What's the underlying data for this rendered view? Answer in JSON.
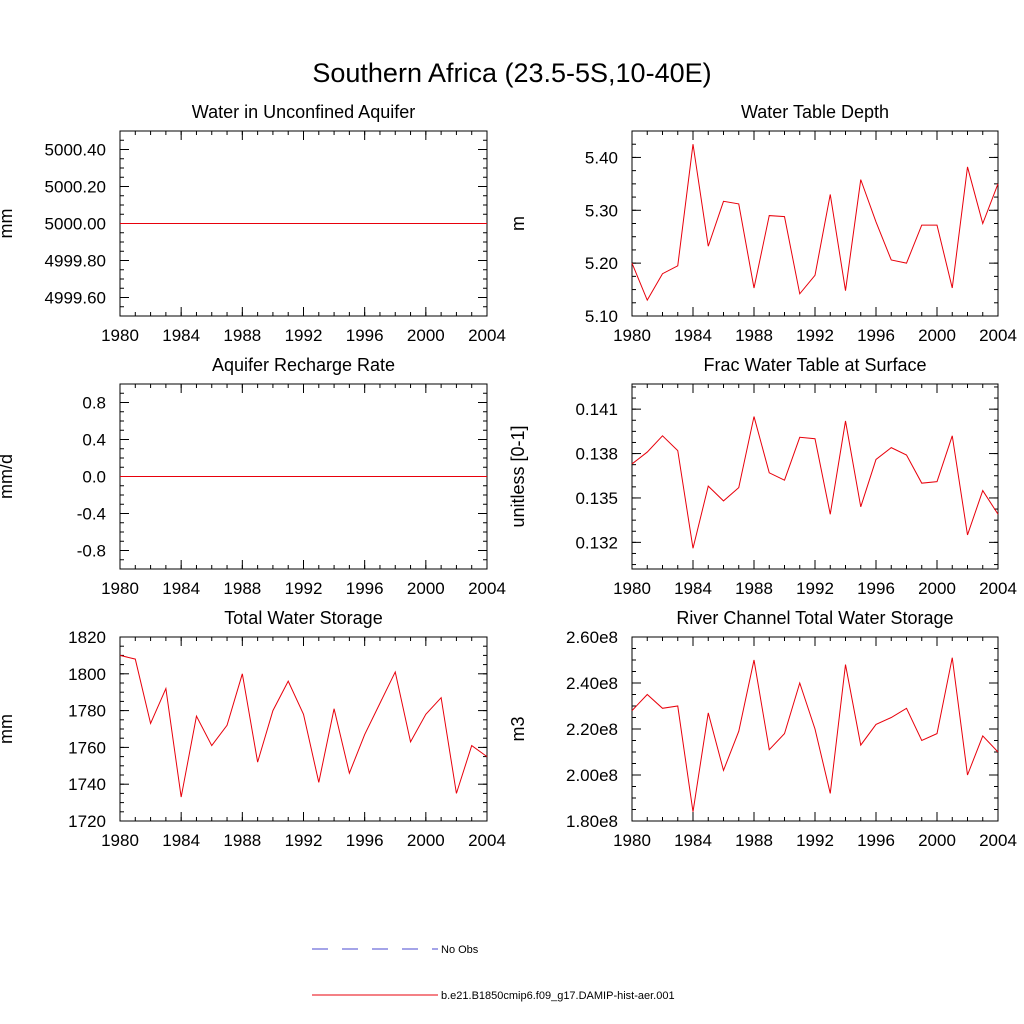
{
  "figure": {
    "title": "Southern Africa (23.5-5S,10-40E)"
  },
  "legend": [
    {
      "label": "No Obs",
      "color": "#4a4ad0",
      "dash": true
    },
    {
      "label": "b.e21.B1850cmip6.f09_g17.DAMIP-hist-aer.001",
      "color": "#e8000b",
      "dash": false
    }
  ],
  "chart_data": [
    {
      "type": "line",
      "title": "Water in Unconfined Aquifer",
      "ylabel": "mm",
      "xlabel": "",
      "xlim": [
        1980,
        2004
      ],
      "ylim": [
        4999.5,
        5000.5
      ],
      "xticks": [
        1980,
        1984,
        1988,
        1992,
        1996,
        2000,
        2004
      ],
      "yticks": [
        4999.6,
        4999.8,
        5000.0,
        5000.2,
        5000.4
      ],
      "ytick_labels": [
        "4999.60",
        "4999.80",
        "5000.00",
        "5000.20",
        "5000.40"
      ],
      "grid": false,
      "series": [
        {
          "color": "#e8000b",
          "x": [
            1980,
            1981,
            1982,
            1983,
            1984,
            1985,
            1986,
            1987,
            1988,
            1989,
            1990,
            1991,
            1992,
            1993,
            1994,
            1995,
            1996,
            1997,
            1998,
            1999,
            2000,
            2001,
            2002,
            2003,
            2004
          ],
          "values": [
            5000,
            5000,
            5000,
            5000,
            5000,
            5000,
            5000,
            5000,
            5000,
            5000,
            5000,
            5000,
            5000,
            5000,
            5000,
            5000,
            5000,
            5000,
            5000,
            5000,
            5000,
            5000,
            5000,
            5000,
            5000
          ]
        }
      ]
    },
    {
      "type": "line",
      "title": "Water Table Depth",
      "ylabel": "m",
      "xlabel": "",
      "xlim": [
        1980,
        2004
      ],
      "ylim": [
        5.1,
        5.45
      ],
      "xticks": [
        1980,
        1984,
        1988,
        1992,
        1996,
        2000,
        2004
      ],
      "yticks": [
        5.1,
        5.2,
        5.3,
        5.4
      ],
      "ytick_labels": [
        "5.10",
        "5.20",
        "5.30",
        "5.40"
      ],
      "grid": false,
      "series": [
        {
          "color": "#e8000b",
          "x": [
            1980,
            1981,
            1982,
            1983,
            1984,
            1985,
            1986,
            1987,
            1988,
            1989,
            1990,
            1991,
            1992,
            1993,
            1994,
            1995,
            1996,
            1997,
            1998,
            1999,
            2000,
            2001,
            2002,
            2003,
            2004
          ],
          "values": [
            5.2,
            5.13,
            5.18,
            5.195,
            5.425,
            5.232,
            5.317,
            5.312,
            5.153,
            5.29,
            5.288,
            5.142,
            5.177,
            5.33,
            5.148,
            5.358,
            5.278,
            5.206,
            5.2,
            5.272,
            5.272,
            5.153,
            5.382,
            5.275,
            5.35
          ]
        }
      ]
    },
    {
      "type": "line",
      "title": "Aquifer Recharge Rate",
      "ylabel": "mm/d",
      "xlabel": "",
      "xlim": [
        1980,
        2004
      ],
      "ylim": [
        -1.0,
        1.0
      ],
      "xticks": [
        1980,
        1984,
        1988,
        1992,
        1996,
        2000,
        2004
      ],
      "yticks": [
        -0.8,
        -0.4,
        0.0,
        0.4,
        0.8
      ],
      "ytick_labels": [
        "-0.8",
        "-0.4",
        "0.0",
        "0.4",
        "0.8"
      ],
      "grid": false,
      "series": [
        {
          "color": "#e8000b",
          "x": [
            1980,
            1981,
            1982,
            1983,
            1984,
            1985,
            1986,
            1987,
            1988,
            1989,
            1990,
            1991,
            1992,
            1993,
            1994,
            1995,
            1996,
            1997,
            1998,
            1999,
            2000,
            2001,
            2002,
            2003,
            2004
          ],
          "values": [
            0,
            0,
            0,
            0,
            0,
            0,
            0,
            0,
            0,
            0,
            0,
            0,
            0,
            0,
            0,
            0,
            0,
            0,
            0,
            0,
            0,
            0,
            0,
            0,
            0
          ]
        }
      ]
    },
    {
      "type": "line",
      "title": "Frac Water Table at Surface",
      "ylabel": "unitless [0-1]",
      "xlabel": "",
      "xlim": [
        1980,
        2004
      ],
      "ylim": [
        0.1302,
        0.1427
      ],
      "xticks": [
        1980,
        1984,
        1988,
        1992,
        1996,
        2000,
        2004
      ],
      "yticks": [
        0.132,
        0.135,
        0.138,
        0.141
      ],
      "ytick_labels": [
        "0.132",
        "0.135",
        "0.138",
        "0.141"
      ],
      "grid": false,
      "series": [
        {
          "color": "#e8000b",
          "x": [
            1980,
            1981,
            1982,
            1983,
            1984,
            1985,
            1986,
            1987,
            1988,
            1989,
            1990,
            1991,
            1992,
            1993,
            1994,
            1995,
            1996,
            1997,
            1998,
            1999,
            2000,
            2001,
            2002,
            2003,
            2004
          ],
          "values": [
            0.1373,
            0.1381,
            0.1392,
            0.1382,
            0.1316,
            0.1358,
            0.1348,
            0.1357,
            0.1405,
            0.1367,
            0.1362,
            0.1391,
            0.139,
            0.1339,
            0.1402,
            0.1344,
            0.1376,
            0.1384,
            0.1379,
            0.136,
            0.1361,
            0.1392,
            0.1325,
            0.1355,
            0.1339
          ]
        }
      ]
    },
    {
      "type": "line",
      "title": "Total Water Storage",
      "ylabel": "mm",
      "xlabel": "",
      "xlim": [
        1980,
        2004
      ],
      "ylim": [
        1720,
        1820
      ],
      "xticks": [
        1980,
        1984,
        1988,
        1992,
        1996,
        2000,
        2004
      ],
      "yticks": [
        1720,
        1740,
        1760,
        1780,
        1800,
        1820
      ],
      "ytick_labels": [
        "1720",
        "1740",
        "1760",
        "1780",
        "1800",
        "1820"
      ],
      "grid": false,
      "series": [
        {
          "color": "#e8000b",
          "x": [
            1980,
            1981,
            1982,
            1983,
            1984,
            1985,
            1986,
            1987,
            1988,
            1989,
            1990,
            1991,
            1992,
            1993,
            1994,
            1995,
            1996,
            1997,
            1998,
            1999,
            2000,
            2001,
            2002,
            2003,
            2004
          ],
          "values": [
            1810,
            1808,
            1773,
            1792,
            1733,
            1777,
            1761,
            1772,
            1800,
            1752,
            1780,
            1796,
            1778,
            1741,
            1781,
            1746,
            1767,
            1784,
            1801,
            1763,
            1778,
            1787,
            1735,
            1761,
            1755
          ]
        }
      ]
    },
    {
      "type": "line",
      "title": "River Channel Total Water Storage",
      "ylabel": "m3",
      "xlabel": "",
      "xlim": [
        1980,
        2004
      ],
      "ylim": [
        180000000.0,
        260000000.0
      ],
      "xticks": [
        1980,
        1984,
        1988,
        1992,
        1996,
        2000,
        2004
      ],
      "yticks": [
        180000000.0,
        200000000.0,
        220000000.0,
        240000000.0,
        260000000.0
      ],
      "ytick_labels": [
        "1.80e8",
        "2.00e8",
        "2.20e8",
        "2.40e8",
        "2.60e8"
      ],
      "grid": false,
      "series": [
        {
          "color": "#e8000b",
          "x": [
            1980,
            1981,
            1982,
            1983,
            1984,
            1985,
            1986,
            1987,
            1988,
            1989,
            1990,
            1991,
            1992,
            1993,
            1994,
            1995,
            1996,
            1997,
            1998,
            1999,
            2000,
            2001,
            2002,
            2003,
            2004
          ],
          "values": [
            228000000.0,
            235000000.0,
            229000000.0,
            230000000.0,
            184000000.0,
            227000000.0,
            202000000.0,
            219000000.0,
            250000000.0,
            211000000.0,
            218000000.0,
            240000000.0,
            220000000.0,
            192000000.0,
            248000000.0,
            213000000.0,
            222000000.0,
            225000000.0,
            229000000.0,
            215000000.0,
            218000000.0,
            251000000.0,
            200000000.0,
            217000000.0,
            210000000.0
          ]
        }
      ]
    }
  ]
}
